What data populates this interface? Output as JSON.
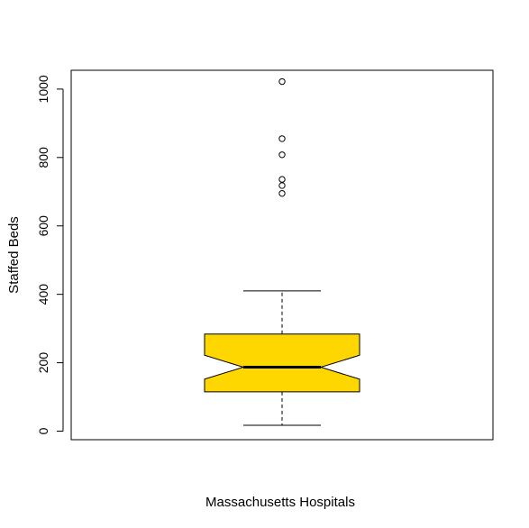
{
  "chart_data": {
    "type": "boxplot",
    "notched": true,
    "xlabel": "Massachusetts Hospitals",
    "ylabel": "Staffed Beds",
    "ylim": [
      -25,
      1055
    ],
    "yticks": [
      0,
      200,
      400,
      600,
      800,
      1000
    ],
    "box": {
      "whisker_low": 17,
      "q1": 115,
      "median": 187,
      "q3": 284,
      "whisker_high": 410,
      "notch_low": 152,
      "notch_high": 222
    },
    "outliers": [
      695,
      718,
      736,
      808,
      855,
      1022
    ],
    "colors": {
      "box_fill": "#ffd700",
      "stroke": "#000000"
    }
  }
}
